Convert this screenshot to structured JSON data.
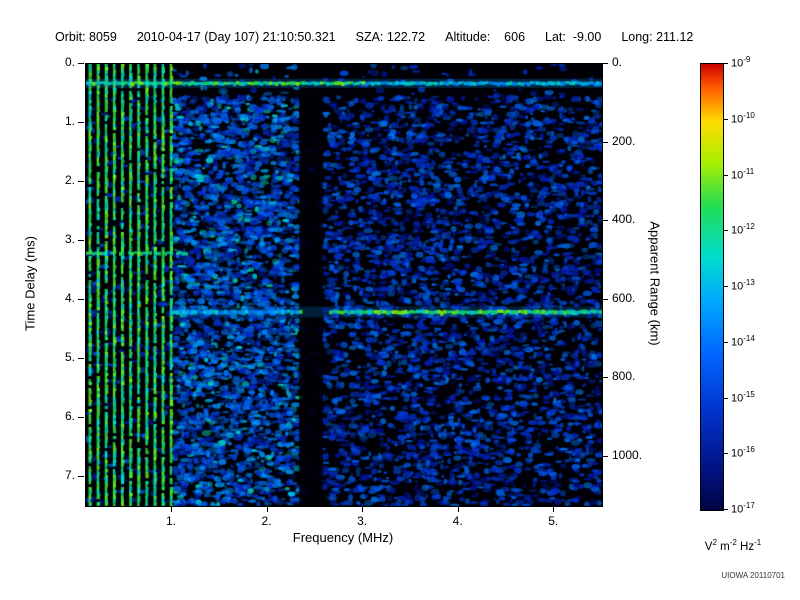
{
  "header": {
    "items": [
      "Orbit: 8059",
      "2010-04-17 (Day 107) 21:10:50.321",
      "SZA: 122.72",
      "Altitude:    606",
      "Lat:  -9.00",
      "Long: 211.12"
    ]
  },
  "chart_data": {
    "type": "heatmap",
    "title": "",
    "xlabel": "Frequency (MHz)",
    "ylabel_left": "Time Delay (ms)",
    "ylabel_right": "Apparent Range (km)",
    "xlim": [
      0.1,
      5.5
    ],
    "ylim_ms": [
      0.0,
      7.5
    ],
    "grid": false,
    "x_ticks": [
      {
        "v": 1,
        "label": "1."
      },
      {
        "v": 2,
        "label": "2."
      },
      {
        "v": 3,
        "label": "3."
      },
      {
        "v": 4,
        "label": "4."
      },
      {
        "v": 5,
        "label": "5."
      }
    ],
    "y_ticks_left": [
      {
        "v": 0,
        "label": "0."
      },
      {
        "v": 1,
        "label": "1."
      },
      {
        "v": 2,
        "label": "2."
      },
      {
        "v": 3,
        "label": "3."
      },
      {
        "v": 4,
        "label": "4."
      },
      {
        "v": 5,
        "label": "5."
      },
      {
        "v": 6,
        "label": "6."
      },
      {
        "v": 7,
        "label": "7."
      }
    ],
    "y_ticks_right": [
      {
        "km": 0,
        "label": "0."
      },
      {
        "km": 200,
        "label": "200."
      },
      {
        "km": 400,
        "label": "400."
      },
      {
        "km": 600,
        "label": "600."
      },
      {
        "km": 800,
        "label": "800."
      },
      {
        "km": 1000,
        "label": "1000."
      }
    ],
    "range_km_per_ms": 150,
    "features": {
      "noise_seed": 7,
      "surface_line_ms": 0.32,
      "echo_line_ms": 4.2,
      "mid_line_ms": 3.2,
      "harmonics": {
        "f_start": 0.14,
        "spacing": 0.085,
        "f_end": 1.02
      },
      "dark_band_mhz": [
        2.33,
        2.58
      ],
      "dense_band_mhz": [
        1.02,
        2.33
      ]
    },
    "colorbar": {
      "scale": "log",
      "tick_exponents": [
        "-9",
        "-10",
        "-11",
        "-12",
        "-13",
        "-14",
        "-15",
        "-16",
        "-17"
      ],
      "unit_parts": [
        [
          "V",
          "2"
        ],
        [
          "m",
          "-2"
        ],
        [
          "Hz",
          "-1"
        ]
      ],
      "gradient": [
        {
          "pos": 0.0,
          "color": "#cc0000"
        },
        {
          "pos": 0.05,
          "color": "#ff5500"
        },
        {
          "pos": 0.13,
          "color": "#ffdd00"
        },
        {
          "pos": 0.22,
          "color": "#aaee00"
        },
        {
          "pos": 0.32,
          "color": "#22dd55"
        },
        {
          "pos": 0.43,
          "color": "#00ddcc"
        },
        {
          "pos": 0.53,
          "color": "#00aaff"
        },
        {
          "pos": 0.65,
          "color": "#0066ff"
        },
        {
          "pos": 0.78,
          "color": "#0033cc"
        },
        {
          "pos": 0.9,
          "color": "#001488"
        },
        {
          "pos": 1.0,
          "color": "#000444"
        }
      ]
    }
  },
  "footer": {
    "credit": "UIOWA 20110701"
  }
}
